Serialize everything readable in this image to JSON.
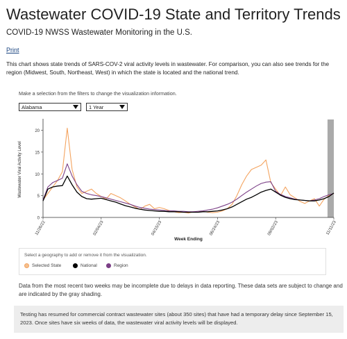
{
  "header": {
    "title": "Wastewater COVID-19 State and Territory Trends",
    "subtitle": "COVID-19 NWSS Wastewater Monitoring in the U.S.",
    "print_label": "Print",
    "description": "This chart shows state trends of SARS-COV-2 viral activity levels in wastewater. For comparison, you can also see trends for the region (Midwest, South, Northeast, West) in which the state is located and the national trend."
  },
  "filters": {
    "hint": "Make a selection from the filters to change the visualization information.",
    "state_value": "Alabama",
    "period_value": "1 Year"
  },
  "legend": {
    "title": "Select a geography to add or remove it from the visualization.",
    "items": [
      {
        "label": "Selected State",
        "color": "#f4a460"
      },
      {
        "label": "National",
        "color": "#000000"
      },
      {
        "label": "Region",
        "color": "#7b3f86"
      }
    ]
  },
  "notes": {
    "incomplete": "Data from the most recent two weeks may be incomplete due to delays in data reporting. These data sets are subject to change and are indicated by the gray shading.",
    "testing": "Testing has resumed for commercial contract wastewater sites (about 350 sites) that have had a temporary delay since September 15, 2023. Once sites have six weeks of data, the wastewater viral activity levels will be displayed."
  },
  "chart_data": {
    "type": "line",
    "ylabel": "Wastewater Viral Activity Level",
    "xlabel": "Week Ending",
    "ylim": [
      0,
      22
    ],
    "yticks": [
      "0",
      "5",
      "10",
      "15",
      "20"
    ],
    "xticks": [
      "11/26/22",
      "02/04/23",
      "04/15/23",
      "06/24/23",
      "09/02/23",
      "11/11/23"
    ],
    "grid": false,
    "shaded_label": "incomplete recent data (last two weeks)",
    "x": [
      0,
      1,
      2,
      3,
      4,
      5,
      6,
      7,
      8,
      9,
      10,
      11,
      12,
      13,
      14,
      15,
      16,
      17,
      18,
      19,
      20,
      21,
      22,
      23,
      24,
      25,
      26,
      27,
      28,
      29,
      30,
      31,
      32,
      33,
      34,
      35,
      36,
      37,
      38,
      39,
      40,
      41,
      42,
      43,
      44,
      45,
      46,
      47,
      48,
      49,
      50,
      51,
      52,
      53,
      54,
      55,
      56,
      57,
      58,
      59,
      60
    ],
    "series": [
      {
        "name": "Selected State",
        "color": "#f4a460",
        "values": [
          4.0,
          5.5,
          7.0,
          8.5,
          10.5,
          20.5,
          11.0,
          7.0,
          5.5,
          6.0,
          6.5,
          5.5,
          4.8,
          4.2,
          5.5,
          5.0,
          4.5,
          3.8,
          3.0,
          2.4,
          1.8,
          2.6,
          3.0,
          2.0,
          2.3,
          2.0,
          1.6,
          1.3,
          1.1,
          1.2,
          1.0,
          1.3,
          1.2,
          1.4,
          1.2,
          1.1,
          1.2,
          1.5,
          2.0,
          3.0,
          5.0,
          7.5,
          9.5,
          11.0,
          11.5,
          12.0,
          13.2,
          8.0,
          6.5,
          5.0,
          7.0,
          5.2,
          4.5,
          3.7,
          3.2,
          3.8,
          4.3,
          2.6,
          4.2,
          5.0,
          5.5
        ]
      },
      {
        "name": "National",
        "color": "#000000",
        "values": [
          3.8,
          6.5,
          7.0,
          7.2,
          7.3,
          9.5,
          7.5,
          5.8,
          4.8,
          4.3,
          4.2,
          4.3,
          4.4,
          4.1,
          3.8,
          3.5,
          3.1,
          2.7,
          2.4,
          2.1,
          1.9,
          1.7,
          1.6,
          1.5,
          1.4,
          1.4,
          1.3,
          1.3,
          1.3,
          1.2,
          1.2,
          1.2,
          1.2,
          1.3,
          1.3,
          1.4,
          1.5,
          1.7,
          2.0,
          2.4,
          3.0,
          3.6,
          4.2,
          4.6,
          5.2,
          5.8,
          6.2,
          6.5,
          5.8,
          5.1,
          4.6,
          4.3,
          4.1,
          4.0,
          3.9,
          3.8,
          3.8,
          4.0,
          4.3,
          4.8,
          5.6
        ]
      },
      {
        "name": "Region",
        "color": "#7b3f86",
        "values": [
          4.0,
          7.0,
          8.0,
          8.5,
          9.0,
          12.3,
          9.5,
          7.5,
          6.0,
          5.5,
          5.2,
          5.0,
          4.8,
          4.5,
          4.2,
          3.9,
          3.6,
          3.3,
          3.0,
          2.6,
          2.3,
          2.1,
          1.9,
          1.8,
          1.7,
          1.6,
          1.5,
          1.5,
          1.4,
          1.4,
          1.3,
          1.3,
          1.4,
          1.5,
          1.7,
          1.9,
          2.2,
          2.6,
          3.0,
          3.5,
          4.2,
          5.0,
          5.8,
          6.5,
          7.2,
          7.8,
          8.1,
          8.2,
          6.0,
          5.3,
          4.8,
          4.5,
          4.2,
          4.0,
          3.9,
          3.8,
          4.0,
          4.3,
          4.8,
          5.2,
          5.5
        ]
      }
    ]
  }
}
